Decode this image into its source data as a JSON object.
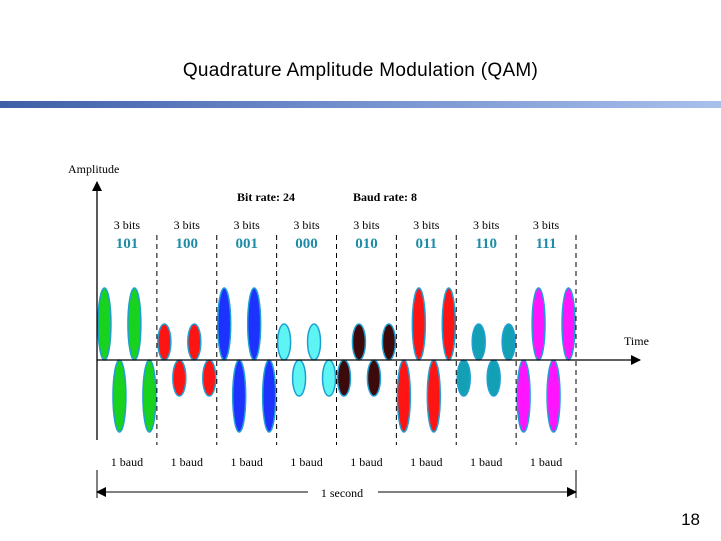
{
  "slide": {
    "title": "Quadrature Amplitude Modulation (QAM)",
    "page_number": "18"
  },
  "diagram": {
    "y_axis_label": "Amplitude",
    "x_axis_label": "Time",
    "bit_rate_label": "Bit rate: 24",
    "baud_rate_label": "Baud rate: 8",
    "duration_label": "1 second",
    "segments": [
      {
        "bits_label": "3 bits",
        "code": "101",
        "baud_label": "1 baud",
        "color": "#19d21e",
        "amplitude": 0.9,
        "phase": 0
      },
      {
        "bits_label": "3 bits",
        "code": "100",
        "baud_label": "1 baud",
        "color": "#ff1414",
        "amplitude": 0.45,
        "phase": 0
      },
      {
        "bits_label": "3 bits",
        "code": "001",
        "baud_label": "1 baud",
        "color": "#1e32ff",
        "amplitude": 0.9,
        "phase": 0
      },
      {
        "bits_label": "3 bits",
        "code": "000",
        "baud_label": "1 baud",
        "color": "#5ff4f4",
        "amplitude": 0.45,
        "phase": 0
      },
      {
        "bits_label": "3 bits",
        "code": "010",
        "baud_label": "1 baud",
        "color": "#3c0a0a",
        "amplitude": 0.45,
        "phase": 180
      },
      {
        "bits_label": "3 bits",
        "code": "011",
        "baud_label": "1 baud",
        "color": "#ff1414",
        "amplitude": 0.9,
        "phase": 180
      },
      {
        "bits_label": "3 bits",
        "code": "110",
        "baud_label": "1 baud",
        "color": "#14a0b4",
        "amplitude": 0.45,
        "phase": 180
      },
      {
        "bits_label": "3 bits",
        "code": "111",
        "baud_label": "1 baud",
        "color": "#ff14ff",
        "amplitude": 0.9,
        "phase": 180
      }
    ],
    "code_color": "#1e8ca8",
    "outline_color": "#1ea0d2"
  }
}
